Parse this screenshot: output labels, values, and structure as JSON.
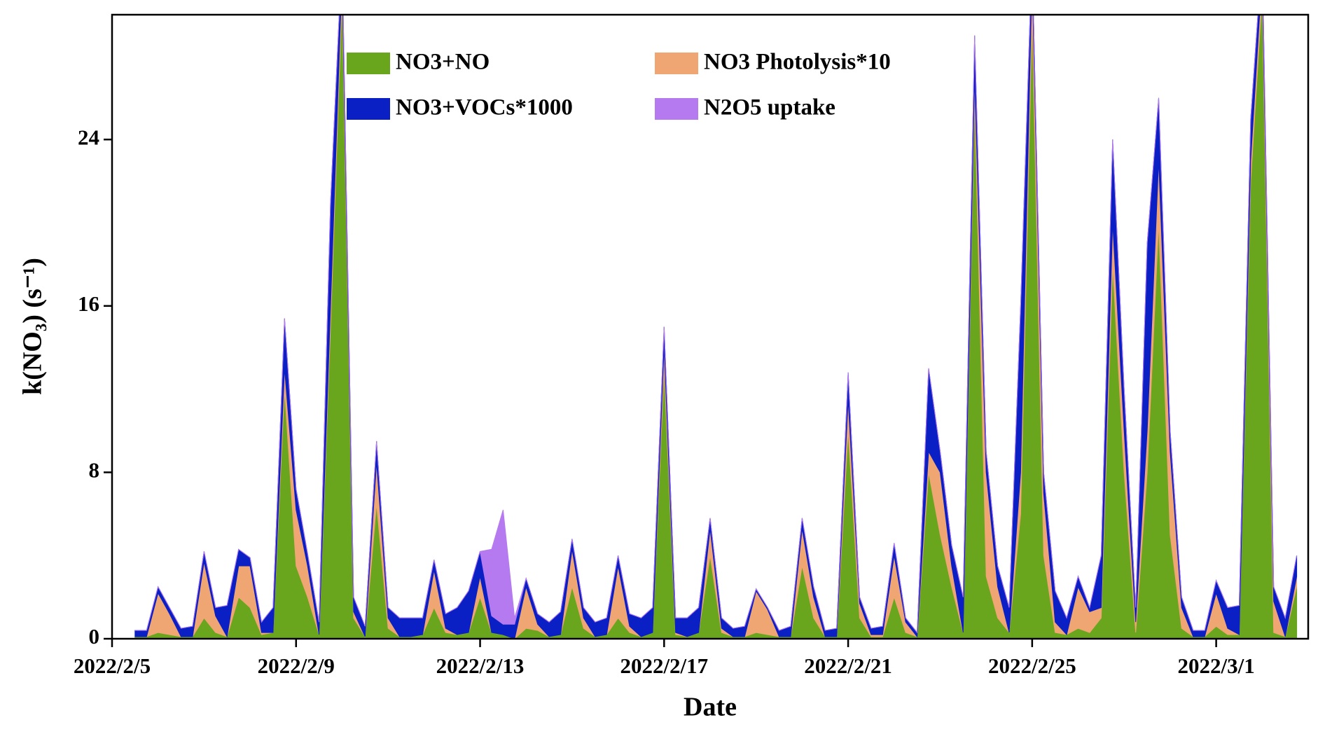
{
  "chart_data": {
    "type": "stacked_area",
    "ylabel": "k(NO₃)  (s⁻¹)",
    "xlabel": "Date",
    "x": [
      "2022-02-05T12:00",
      "2022-02-05T18:00",
      "2022-02-06T00:00",
      "2022-02-06T06:00",
      "2022-02-06T12:00",
      "2022-02-06T18:00",
      "2022-02-07T00:00",
      "2022-02-07T06:00",
      "2022-02-07T12:00",
      "2022-02-07T18:00",
      "2022-02-08T00:00",
      "2022-02-08T06:00",
      "2022-02-08T12:00",
      "2022-02-08T18:00",
      "2022-02-09T00:00",
      "2022-02-09T06:00",
      "2022-02-09T12:00",
      "2022-02-09T18:00",
      "2022-02-10T00:00",
      "2022-02-10T06:00",
      "2022-02-10T12:00",
      "2022-02-10T18:00",
      "2022-02-11T00:00",
      "2022-02-11T06:00",
      "2022-02-11T12:00",
      "2022-02-11T18:00",
      "2022-02-12T00:00",
      "2022-02-12T06:00",
      "2022-02-12T12:00",
      "2022-02-12T18:00",
      "2022-02-13T00:00",
      "2022-02-13T06:00",
      "2022-02-13T12:00",
      "2022-02-13T18:00",
      "2022-02-14T00:00",
      "2022-02-14T06:00",
      "2022-02-14T12:00",
      "2022-02-14T18:00",
      "2022-02-15T00:00",
      "2022-02-15T06:00",
      "2022-02-15T12:00",
      "2022-02-15T18:00",
      "2022-02-16T00:00",
      "2022-02-16T06:00",
      "2022-02-16T12:00",
      "2022-02-16T18:00",
      "2022-02-17T00:00",
      "2022-02-17T06:00",
      "2022-02-17T12:00",
      "2022-02-17T18:00",
      "2022-02-18T00:00",
      "2022-02-18T06:00",
      "2022-02-18T12:00",
      "2022-02-18T18:00",
      "2022-02-19T00:00",
      "2022-02-19T06:00",
      "2022-02-19T12:00",
      "2022-02-19T18:00",
      "2022-02-20T00:00",
      "2022-02-20T06:00",
      "2022-02-20T12:00",
      "2022-02-20T18:00",
      "2022-02-21T00:00",
      "2022-02-21T06:00",
      "2022-02-21T12:00",
      "2022-02-21T18:00",
      "2022-02-22T00:00",
      "2022-02-22T06:00",
      "2022-02-22T12:00",
      "2022-02-22T18:00",
      "2022-02-23T00:00",
      "2022-02-23T06:00",
      "2022-02-23T12:00",
      "2022-02-23T18:00",
      "2022-02-24T00:00",
      "2022-02-24T06:00",
      "2022-02-24T12:00",
      "2022-02-24T18:00",
      "2022-02-25T00:00",
      "2022-02-25T06:00",
      "2022-02-25T12:00",
      "2022-02-25T18:00",
      "2022-02-26T00:00",
      "2022-02-26T06:00",
      "2022-02-26T12:00",
      "2022-02-26T18:00",
      "2022-02-27T00:00",
      "2022-02-27T06:00",
      "2022-02-27T12:00",
      "2022-02-27T18:00",
      "2022-02-28T00:00",
      "2022-02-28T06:00",
      "2022-02-28T12:00",
      "2022-02-28T18:00",
      "2022-03-01T00:00",
      "2022-03-01T06:00",
      "2022-03-01T12:00",
      "2022-03-01T18:00",
      "2022-03-02T00:00",
      "2022-03-02T06:00",
      "2022-03-02T12:00",
      "2022-03-02T18:00"
    ],
    "series": [
      {
        "name": "NO3+NO",
        "color": "#6aa51e",
        "values": [
          0.1,
          0.1,
          0.3,
          0.2,
          0.1,
          0.1,
          1.0,
          0.3,
          0.1,
          2.0,
          1.5,
          0.2,
          0.3,
          12,
          3.5,
          2,
          0.2,
          15,
          31,
          1,
          0.1,
          6.5,
          0.5,
          0.1,
          0.1,
          0.2,
          1.5,
          0.3,
          0.2,
          0.3,
          2,
          0.3,
          0.2,
          0,
          0.5,
          0.4,
          0.1,
          0.2,
          2.5,
          0.5,
          0.1,
          0.2,
          1,
          0.3,
          0.1,
          0.3,
          13,
          0.2,
          0.1,
          0.3,
          4,
          0.3,
          0.1,
          0.1,
          0.3,
          0.2,
          0.1,
          0.1,
          3.5,
          1,
          0.1,
          0.1,
          10,
          1,
          0.1,
          0.1,
          2,
          0.3,
          0.1,
          8,
          5,
          2.5,
          0.3,
          26,
          3,
          1,
          0.3,
          6,
          30,
          4,
          0.3,
          0.2,
          0.5,
          0.3,
          1,
          18,
          8,
          0.3,
          8,
          20,
          5,
          0.5,
          0.1,
          0.1,
          0.6,
          0.2,
          0.2,
          22,
          31,
          0.3,
          0.1,
          2.5
        ]
      },
      {
        "name": "NO3 Photolysis*10",
        "color": "#f0a672",
        "values": [
          0,
          0,
          1.9,
          1.0,
          0,
          0,
          2.7,
          0.8,
          0,
          1.5,
          2.0,
          0.1,
          0,
          1,
          2.7,
          1.5,
          0,
          1,
          1,
          0.3,
          0,
          2,
          0.5,
          0,
          0,
          0,
          1.8,
          0.2,
          0,
          0,
          1,
          0,
          0,
          0,
          2.0,
          0.3,
          0,
          0,
          1.8,
          0.5,
          0,
          0,
          2.5,
          0.3,
          0,
          0,
          1,
          0.1,
          0,
          0,
          1.3,
          0.2,
          0,
          0,
          2.0,
          1.2,
          0,
          0,
          1.8,
          1,
          0,
          0,
          1.5,
          0.7,
          0.1,
          0.1,
          2,
          0.5,
          0,
          1,
          3,
          1,
          0,
          1,
          5,
          1.5,
          0,
          2,
          2,
          3,
          0.5,
          0,
          2,
          1,
          0.5,
          2,
          2,
          0.5,
          2,
          3,
          4,
          1,
          0,
          0,
          1.6,
          0.3,
          0,
          1,
          1,
          1.5,
          0,
          0.5
        ]
      },
      {
        "name": "NO3+VOCs*1000",
        "color": "#0a1fc4",
        "values": [
          0.3,
          0.3,
          0.3,
          0.3,
          0.4,
          0.5,
          0.5,
          0.4,
          1.5,
          0.8,
          0.4,
          0.5,
          1.2,
          2.4,
          1.0,
          0.6,
          0.6,
          5,
          1,
          0.7,
          0.5,
          1,
          0.5,
          0.9,
          0.9,
          0.8,
          0.5,
          0.7,
          1.3,
          2.0,
          1.2,
          0.8,
          0.5,
          0.7,
          0.4,
          0.5,
          0.7,
          1.1,
          0.5,
          0.5,
          0.7,
          0.8,
          0.5,
          0.6,
          0.9,
          1.2,
          1,
          0.7,
          0.9,
          1.2,
          0.5,
          0.5,
          0.4,
          0.5,
          0.1,
          0.1,
          0.3,
          0.5,
          0.5,
          0.5,
          0.3,
          0.4,
          1.3,
          0.3,
          0.3,
          0.4,
          0.6,
          0.2,
          0.2,
          4,
          1,
          1,
          1.7,
          2,
          1,
          1,
          1.2,
          8,
          1,
          1,
          1.5,
          0.8,
          0.5,
          0.2,
          2.5,
          4,
          2,
          0.7,
          9,
          3,
          1,
          0.5,
          0.3,
          0.3,
          0.6,
          1,
          1.4,
          2,
          1,
          0.7,
          0.9,
          1
        ]
      },
      {
        "name": "N2O5 uptake",
        "color": "#b57af0",
        "values": [
          0,
          0,
          0,
          0,
          0,
          0,
          0,
          0,
          0,
          0,
          0,
          0,
          0,
          0,
          0,
          0,
          0,
          0,
          0,
          0,
          0,
          0,
          0,
          0,
          0,
          0,
          0,
          0,
          0,
          0,
          0,
          3.2,
          5.5,
          0.3,
          0,
          0,
          0,
          0,
          0,
          0,
          0,
          0,
          0,
          0,
          0,
          0,
          0,
          0,
          0,
          0,
          0,
          0,
          0,
          0,
          0,
          0,
          0,
          0,
          0,
          0,
          0,
          0,
          0,
          0,
          0,
          0,
          0,
          0,
          0,
          0,
          0,
          0,
          0,
          0,
          0,
          0,
          0,
          0,
          0,
          0,
          0,
          0,
          0,
          0,
          0,
          0,
          0,
          0,
          0,
          0,
          0,
          0,
          0,
          0,
          0,
          0,
          0,
          0,
          0,
          0,
          0,
          0
        ]
      }
    ],
    "xlim": [
      "2022-02-05T00:00",
      "2022-03-03T00:00"
    ],
    "xticks": [
      {
        "value": "2022-02-05T00:00",
        "label": "2022/2/5"
      },
      {
        "value": "2022-02-09T00:00",
        "label": "2022/2/9"
      },
      {
        "value": "2022-02-13T00:00",
        "label": "2022/2/13"
      },
      {
        "value": "2022-02-17T00:00",
        "label": "2022/2/17"
      },
      {
        "value": "2022-02-21T00:00",
        "label": "2022/2/21"
      },
      {
        "value": "2022-02-25T00:00",
        "label": "2022/2/25"
      },
      {
        "value": "2022-03-01T00:00",
        "label": "2022/3/1"
      }
    ],
    "ylim": [
      0,
      30
    ],
    "yticks": [
      0,
      8,
      16,
      24
    ]
  }
}
